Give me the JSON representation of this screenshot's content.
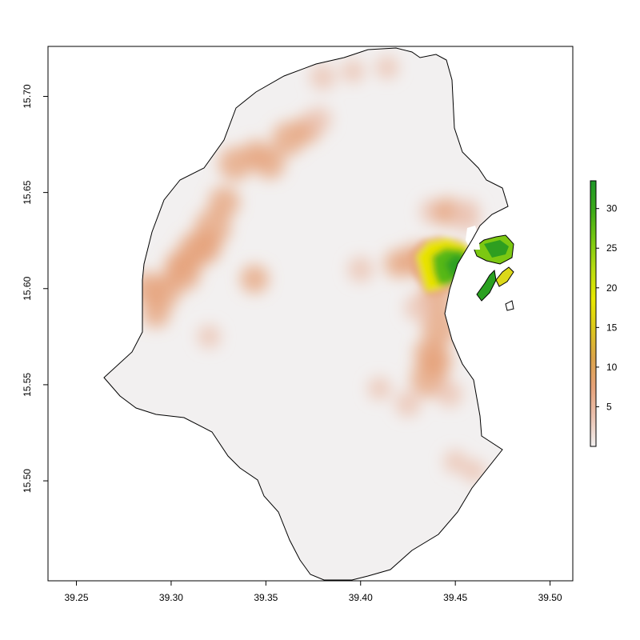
{
  "chart_data": {
    "type": "heatmap",
    "title": "",
    "xlabel": "",
    "ylabel": "",
    "xlim": [
      39.235,
      39.512
    ],
    "ylim": [
      15.448,
      15.726
    ],
    "x_ticks": [
      "39.25",
      "39.30",
      "39.35",
      "39.40",
      "39.45",
      "39.50"
    ],
    "x_tick_values": [
      39.25,
      39.3,
      39.35,
      39.4,
      39.45,
      39.5
    ],
    "y_ticks": [
      "15.50",
      "15.55",
      "15.60",
      "15.65",
      "15.70"
    ],
    "y_tick_values": [
      15.5,
      15.55,
      15.6,
      15.65,
      15.7
    ],
    "legend": {
      "position": "right",
      "range": [
        0,
        33.5
      ],
      "ticks": [
        "5",
        "10",
        "15",
        "20",
        "25",
        "30"
      ],
      "tick_values": [
        5,
        10,
        15,
        20,
        25,
        30
      ],
      "colors": [
        "#f2f0f0",
        "#ebc2b0",
        "#e6a27a",
        "#dba44a",
        "#dcc81c",
        "#e8e800",
        "#b8dc10",
        "#78c810",
        "#3caa18",
        "#1e9628"
      ]
    },
    "colors": {
      "background_fill": "#f2f0f0",
      "outline": "#000000",
      "no_data": "#ffffff"
    },
    "hotspots": [
      {
        "lon": 39.288,
        "lat": 15.6,
        "value": 7
      },
      {
        "lon": 39.296,
        "lat": 15.598,
        "value": 7
      },
      {
        "lon": 39.292,
        "lat": 15.587,
        "value": 5
      },
      {
        "lon": 39.305,
        "lat": 15.612,
        "value": 6
      },
      {
        "lon": 39.313,
        "lat": 15.62,
        "value": 8
      },
      {
        "lon": 39.322,
        "lat": 15.632,
        "value": 8
      },
      {
        "lon": 39.318,
        "lat": 15.622,
        "value": 7
      },
      {
        "lon": 39.328,
        "lat": 15.645,
        "value": 6
      },
      {
        "lon": 39.334,
        "lat": 15.665,
        "value": 7
      },
      {
        "lon": 39.345,
        "lat": 15.67,
        "value": 5
      },
      {
        "lon": 39.352,
        "lat": 15.665,
        "value": 6
      },
      {
        "lon": 39.362,
        "lat": 15.678,
        "value": 7
      },
      {
        "lon": 39.372,
        "lat": 15.683,
        "value": 5
      },
      {
        "lon": 39.38,
        "lat": 15.71,
        "value": 4
      },
      {
        "lon": 39.396,
        "lat": 15.713,
        "value": 3
      },
      {
        "lon": 39.414,
        "lat": 15.715,
        "value": 3
      },
      {
        "lon": 39.344,
        "lat": 15.605,
        "value": 5
      },
      {
        "lon": 39.4,
        "lat": 15.61,
        "value": 4
      },
      {
        "lon": 39.42,
        "lat": 15.613,
        "value": 5
      },
      {
        "lon": 39.43,
        "lat": 15.615,
        "value": 7
      },
      {
        "lon": 39.438,
        "lat": 15.64,
        "value": 4
      },
      {
        "lon": 39.44,
        "lat": 15.596,
        "value": 7
      },
      {
        "lon": 39.442,
        "lat": 15.58,
        "value": 8
      },
      {
        "lon": 39.437,
        "lat": 15.566,
        "value": 7
      },
      {
        "lon": 39.436,
        "lat": 15.553,
        "value": 8
      },
      {
        "lon": 39.446,
        "lat": 15.64,
        "value": 5
      },
      {
        "lon": 39.456,
        "lat": 15.636,
        "value": 4
      },
      {
        "lon": 39.456,
        "lat": 15.64,
        "value": 4
      },
      {
        "lon": 39.41,
        "lat": 15.548,
        "value": 3
      },
      {
        "lon": 39.425,
        "lat": 15.54,
        "value": 4
      },
      {
        "lon": 39.45,
        "lat": 15.51,
        "value": 3
      },
      {
        "lon": 39.46,
        "lat": 15.505,
        "value": 3
      },
      {
        "lon": 39.32,
        "lat": 15.575,
        "value": 3
      },
      {
        "lon": 39.44,
        "lat": 15.562,
        "value": 6
      },
      {
        "lon": 39.378,
        "lat": 15.688,
        "value": 4
      },
      {
        "lon": 39.306,
        "lat": 15.608,
        "value": 8
      },
      {
        "lon": 39.43,
        "lat": 15.59,
        "value": 4
      },
      {
        "lon": 39.447,
        "lat": 15.545,
        "value": 4
      }
    ]
  }
}
